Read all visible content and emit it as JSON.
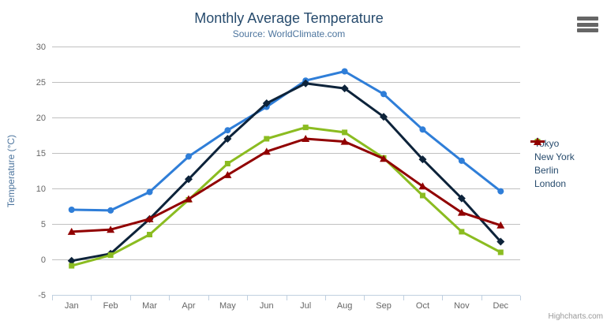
{
  "chart": {
    "credits": "Highcharts.com",
    "menu_icon": "hamburger-menu-icon"
  },
  "chart_data": {
    "type": "line",
    "title": "Monthly Average Temperature",
    "subtitle": "Source: WorldClimate.com",
    "xlabel": "",
    "ylabel": "Temperature (°C)",
    "categories": [
      "Jan",
      "Feb",
      "Mar",
      "Apr",
      "May",
      "Jun",
      "Jul",
      "Aug",
      "Sep",
      "Oct",
      "Nov",
      "Dec"
    ],
    "series": [
      {
        "name": "Tokyo",
        "color": "#2f7ed8",
        "marker": "circle",
        "values": [
          7.0,
          6.9,
          9.5,
          14.5,
          18.2,
          21.5,
          25.2,
          26.5,
          23.3,
          18.3,
          13.9,
          9.6
        ]
      },
      {
        "name": "New York",
        "color": "#0d233a",
        "marker": "diamond",
        "values": [
          -0.2,
          0.8,
          5.7,
          11.3,
          17.0,
          22.0,
          24.8,
          24.1,
          20.1,
          14.1,
          8.6,
          2.5
        ]
      },
      {
        "name": "Berlin",
        "color": "#8bbc21",
        "marker": "square",
        "values": [
          -0.9,
          0.6,
          3.5,
          8.4,
          13.5,
          17.0,
          18.6,
          17.9,
          14.3,
          9.0,
          3.9,
          1.0
        ]
      },
      {
        "name": "London",
        "color": "#910000",
        "marker": "triangle",
        "values": [
          3.9,
          4.2,
          5.7,
          8.5,
          11.9,
          15.2,
          17.0,
          16.6,
          14.2,
          10.3,
          6.6,
          4.8
        ]
      }
    ],
    "ylim": [
      -5,
      30
    ],
    "ytick_step": 5,
    "grid": true,
    "legend_position": "right",
    "colors": {
      "grid_line": "#c0c0c0",
      "axis_line": "#c0d0e0",
      "axis_label": "#666666",
      "title": "#274b6d",
      "subtitle": "#4d759e",
      "legend_text": "#274b6d",
      "credits_text": "#999999",
      "menu_icon": "#666666"
    }
  }
}
